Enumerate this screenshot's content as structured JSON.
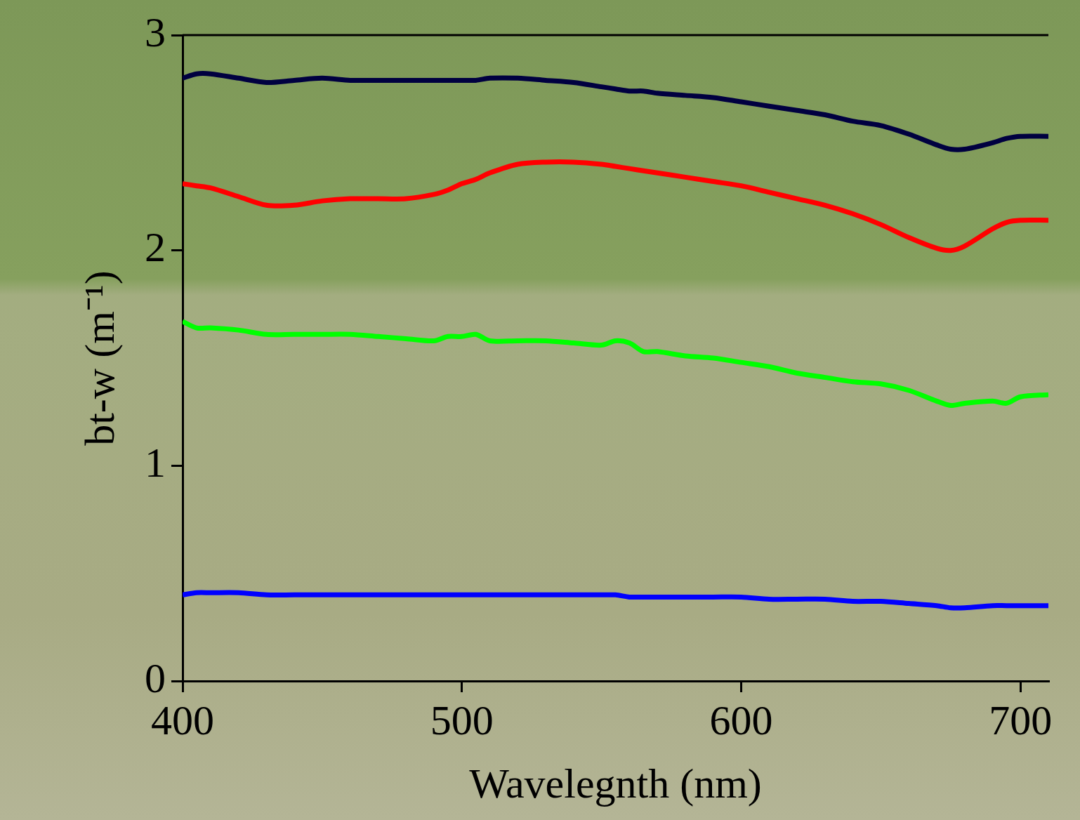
{
  "chart_data": {
    "type": "line",
    "x_label": "Wavelegnth (nm)",
    "y_label": "bt-w (m⁻¹)",
    "x": [
      400,
      405,
      410,
      420,
      430,
      440,
      450,
      460,
      470,
      480,
      490,
      495,
      500,
      505,
      510,
      520,
      530,
      540,
      550,
      555,
      560,
      565,
      570,
      580,
      590,
      600,
      610,
      620,
      630,
      640,
      650,
      660,
      670,
      675,
      680,
      690,
      695,
      700,
      710
    ],
    "series": [
      {
        "color": "#000040",
        "values": [
          2.8,
          2.82,
          2.82,
          2.8,
          2.78,
          2.79,
          2.8,
          2.79,
          2.79,
          2.79,
          2.79,
          2.79,
          2.79,
          2.79,
          2.8,
          2.8,
          2.79,
          2.78,
          2.76,
          2.75,
          2.74,
          2.74,
          2.73,
          2.72,
          2.71,
          2.69,
          2.67,
          2.65,
          2.63,
          2.6,
          2.58,
          2.54,
          2.49,
          2.47,
          2.47,
          2.5,
          2.52,
          2.53,
          2.53
        ]
      },
      {
        "color": "#ff0000",
        "values": [
          2.31,
          2.3,
          2.29,
          2.25,
          2.21,
          2.21,
          2.23,
          2.24,
          2.24,
          2.24,
          2.26,
          2.28,
          2.31,
          2.33,
          2.36,
          2.4,
          2.41,
          2.41,
          2.4,
          2.39,
          2.38,
          2.37,
          2.36,
          2.34,
          2.32,
          2.3,
          2.27,
          2.24,
          2.21,
          2.17,
          2.12,
          2.06,
          2.01,
          2.0,
          2.02,
          2.1,
          2.13,
          2.14,
          2.14
        ]
      },
      {
        "color": "#00ff00",
        "values": [
          1.67,
          1.64,
          1.64,
          1.63,
          1.61,
          1.61,
          1.61,
          1.61,
          1.6,
          1.59,
          1.58,
          1.6,
          1.6,
          1.61,
          1.58,
          1.58,
          1.58,
          1.57,
          1.56,
          1.58,
          1.57,
          1.53,
          1.53,
          1.51,
          1.5,
          1.48,
          1.46,
          1.43,
          1.41,
          1.39,
          1.38,
          1.35,
          1.3,
          1.28,
          1.29,
          1.3,
          1.29,
          1.32,
          1.33
        ]
      },
      {
        "color": "#0000ff",
        "values": [
          0.4,
          0.41,
          0.41,
          0.41,
          0.4,
          0.4,
          0.4,
          0.4,
          0.4,
          0.4,
          0.4,
          0.4,
          0.4,
          0.4,
          0.4,
          0.4,
          0.4,
          0.4,
          0.4,
          0.4,
          0.39,
          0.39,
          0.39,
          0.39,
          0.39,
          0.39,
          0.38,
          0.38,
          0.38,
          0.37,
          0.37,
          0.36,
          0.35,
          0.34,
          0.34,
          0.35,
          0.35,
          0.35,
          0.35
        ]
      }
    ],
    "xlim": [
      400,
      710
    ],
    "xticks": [
      400,
      500,
      600,
      700
    ],
    "ylim": [
      0,
      3
    ],
    "yticks": [
      0,
      1,
      2,
      3
    ],
    "grid": false
  }
}
